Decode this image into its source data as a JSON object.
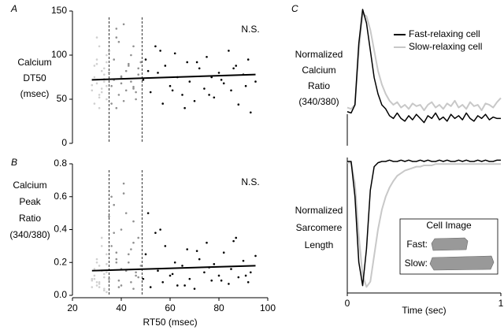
{
  "chart_data": [
    {
      "type": "scatter",
      "panel_label": "A",
      "annotation": "N.S.",
      "ylabel": [
        "Calcium",
        "DT50",
        "(msec)"
      ],
      "xlim": [
        20,
        100
      ],
      "ylim": [
        0,
        150
      ],
      "yticks": [
        0,
        50,
        100,
        150
      ],
      "vlines": [
        35,
        48.5
      ],
      "series": [
        {
          "color": "#d0d0d0",
          "x": [
            28,
            29,
            30,
            31,
            32,
            33,
            34,
            29,
            30,
            31,
            32,
            33,
            34,
            28,
            30,
            31,
            33,
            34,
            29,
            32,
            30,
            33,
            31,
            34,
            28
          ],
          "values": [
            60,
            75,
            90,
            55,
            82,
            70,
            100,
            45,
            68,
            110,
            62,
            85,
            50,
            72,
            95,
            40,
            78,
            65,
            88,
            58,
            120,
            73,
            52,
            92,
            66
          ]
        },
        {
          "color": "#909090",
          "x": [
            35,
            36,
            37,
            38,
            39,
            40,
            41,
            42,
            43,
            44,
            45,
            46,
            47,
            48,
            36,
            38,
            40,
            42,
            44,
            46,
            37,
            39,
            41,
            43,
            45,
            47,
            35,
            40,
            45,
            38
          ],
          "values": [
            80,
            65,
            95,
            120,
            55,
            75,
            135,
            60,
            88,
            70,
            110,
            50,
            78,
            92,
            45,
            130,
            68,
            82,
            100,
            58,
            72,
            115,
            48,
            90,
            64,
            85,
            105,
            76,
            62,
            40
          ]
        },
        {
          "color": "#000000",
          "x": [
            49,
            50,
            52,
            54,
            55,
            57,
            58,
            60,
            62,
            63,
            65,
            67,
            68,
            70,
            72,
            74,
            75,
            77,
            78,
            80,
            82,
            84,
            85,
            87,
            88,
            90,
            92,
            93,
            95,
            51,
            56,
            61,
            66,
            71,
            76,
            81,
            86,
            91
          ],
          "values": [
            72,
            95,
            58,
            110,
            80,
            45,
            88,
            65,
            102,
            75,
            55,
            92,
            70,
            48,
            85,
            62,
            98,
            75,
            52,
            80,
            68,
            105,
            60,
            88,
            44,
            78,
            95,
            35,
            70,
            82,
            105,
            60,
            40,
            92,
            55,
            72,
            85,
            65
          ]
        },
        {
          "color": "#000000",
          "mode": "line",
          "x": [
            28,
            95
          ],
          "values": [
            72,
            78
          ]
        }
      ]
    },
    {
      "type": "scatter",
      "panel_label": "B",
      "annotation": "N.S.",
      "ylabel": [
        "Calcium",
        "Peak",
        "Ratio",
        "(340/380)"
      ],
      "xlabel": "RT50 (msec)",
      "xlim": [
        20,
        100
      ],
      "xticks": [
        20,
        40,
        60,
        80,
        100
      ],
      "ylim": [
        0,
        0.8
      ],
      "yticks": [
        {
          "value": 0,
          "label": "0.0"
        },
        0.2,
        0.4,
        0.6,
        0.8
      ],
      "vlines": [
        35,
        48.5
      ],
      "series": [
        {
          "color": "#d0d0d0",
          "x": [
            28,
            29,
            30,
            31,
            32,
            33,
            34,
            29,
            30,
            31,
            32,
            33,
            34,
            28,
            30,
            31,
            33,
            34,
            29,
            32,
            30,
            33,
            31,
            34,
            28
          ],
          "values": [
            0.05,
            0.12,
            0.2,
            0.08,
            0.15,
            0.03,
            0.25,
            0.1,
            0.06,
            0.18,
            0.3,
            0.04,
            0.14,
            0.09,
            0.22,
            0.07,
            0.11,
            0.02,
            0.16,
            0.35,
            0.08,
            0.13,
            0.05,
            0.19,
            0.1
          ]
        },
        {
          "color": "#909090",
          "x": [
            35,
            36,
            37,
            38,
            39,
            40,
            41,
            42,
            43,
            44,
            45,
            46,
            47,
            48,
            36,
            38,
            40,
            42,
            44,
            46,
            37,
            39,
            41,
            43,
            45,
            47,
            35,
            40,
            45,
            38
          ],
          "values": [
            0.1,
            0.3,
            0.55,
            0.2,
            0.05,
            0.4,
            0.68,
            0.15,
            0.25,
            0.08,
            0.45,
            0.12,
            0.35,
            0.18,
            0.6,
            0.22,
            0.06,
            0.5,
            0.28,
            0.14,
            0.38,
            0.09,
            0.62,
            0.2,
            0.32,
            0.11,
            0.48,
            0.16,
            0.04,
            0.26
          ]
        },
        {
          "color": "#000000",
          "x": [
            49,
            50,
            52,
            54,
            55,
            57,
            58,
            60,
            62,
            63,
            65,
            67,
            68,
            70,
            72,
            74,
            75,
            77,
            78,
            80,
            82,
            84,
            85,
            87,
            88,
            90,
            92,
            93,
            95,
            51,
            56,
            61,
            66,
            71,
            76,
            81,
            86,
            91
          ],
          "values": [
            0.1,
            0.25,
            0.05,
            0.38,
            0.15,
            0.08,
            0.3,
            0.12,
            0.2,
            0.06,
            0.18,
            0.28,
            0.1,
            0.04,
            0.22,
            0.14,
            0.32,
            0.09,
            0.19,
            0.12,
            0.26,
            0.07,
            0.16,
            0.35,
            0.11,
            0.21,
            0.08,
            0.14,
            0.24,
            0.5,
            0.4,
            0.13,
            0.06,
            0.27,
            0.17,
            0.09,
            0.33,
            0.12
          ]
        },
        {
          "color": "#000000",
          "mode": "line",
          "x": [
            28,
            95
          ],
          "values": [
            0.15,
            0.18
          ]
        }
      ]
    },
    {
      "type": "line",
      "panel_label": "C",
      "ylabel": [
        "Normalized",
        "Calcium",
        "Ratio",
        "(340/380)"
      ],
      "xlim": [
        0,
        1
      ],
      "ylim": [
        0,
        1
      ],
      "x": [
        0,
        0.025,
        0.05,
        0.075,
        0.1,
        0.125,
        0.15,
        0.175,
        0.2,
        0.225,
        0.25,
        0.275,
        0.3,
        0.325,
        0.35,
        0.375,
        0.4,
        0.425,
        0.45,
        0.475,
        0.5,
        0.525,
        0.55,
        0.575,
        0.6,
        0.625,
        0.65,
        0.675,
        0.7,
        0.725,
        0.75,
        0.775,
        0.8,
        0.825,
        0.85,
        0.875,
        0.9,
        0.925,
        0.95,
        0.975,
        1
      ],
      "series": [
        {
          "name": "Slow-relaxing cell",
          "color": "#c8c8c8",
          "values": [
            0.28,
            0.27,
            0.3,
            0.7,
            0.97,
            0.95,
            0.85,
            0.7,
            0.55,
            0.45,
            0.38,
            0.33,
            0.3,
            0.32,
            0.28,
            0.3,
            0.27,
            0.31,
            0.29,
            0.3,
            0.26,
            0.3,
            0.32,
            0.28,
            0.3,
            0.27,
            0.31,
            0.29,
            0.33,
            0.28,
            0.3,
            0.27,
            0.32,
            0.29,
            0.3,
            0.26,
            0.31,
            0.3,
            0.28,
            0.32,
            0.35
          ]
        },
        {
          "name": "Fast-relaxing cell",
          "color": "#000000",
          "values": [
            0.25,
            0.24,
            0.3,
            0.75,
            1.0,
            0.9,
            0.7,
            0.5,
            0.38,
            0.3,
            0.27,
            0.22,
            0.2,
            0.24,
            0.2,
            0.18,
            0.22,
            0.19,
            0.23,
            0.2,
            0.17,
            0.22,
            0.2,
            0.24,
            0.19,
            0.21,
            0.18,
            0.23,
            0.2,
            0.22,
            0.19,
            0.24,
            0.2,
            0.18,
            0.22,
            0.2,
            0.23,
            0.19,
            0.21,
            0.2,
            0.2
          ]
        }
      ]
    },
    {
      "type": "line",
      "ylabel": [
        "Normalized",
        "Sarcomere",
        "Length"
      ],
      "xlabel": "Time (sec)",
      "xlim": [
        0,
        1
      ],
      "xticks": [
        0,
        1
      ],
      "ylim": [
        0,
        1
      ],
      "x": [
        0,
        0.025,
        0.05,
        0.075,
        0.1,
        0.125,
        0.15,
        0.175,
        0.2,
        0.225,
        0.25,
        0.275,
        0.3,
        0.325,
        0.35,
        0.375,
        0.4,
        0.425,
        0.45,
        0.475,
        0.5,
        0.525,
        0.55,
        0.575,
        0.6,
        0.625,
        0.65,
        0.675,
        0.7,
        0.725,
        0.75,
        0.775,
        0.8,
        0.825,
        0.85,
        0.875,
        0.9,
        0.925,
        0.95,
        0.975,
        1
      ],
      "series": [
        {
          "color": "#c8c8c8",
          "values": [
            0.96,
            0.96,
            0.8,
            0.4,
            0.1,
            0.01,
            0.05,
            0.25,
            0.45,
            0.6,
            0.7,
            0.77,
            0.82,
            0.86,
            0.88,
            0.9,
            0.91,
            0.92,
            0.93,
            0.93,
            0.94,
            0.94,
            0.94,
            0.95,
            0.95,
            0.95,
            0.95,
            0.95,
            0.95,
            0.95,
            0.95,
            0.95,
            0.95,
            0.95,
            0.95,
            0.95,
            0.95,
            0.95,
            0.95,
            0.95,
            0.95
          ]
        },
        {
          "color": "#000000",
          "values": [
            0.97,
            0.97,
            0.7,
            0.2,
            0.02,
            0.3,
            0.75,
            0.93,
            0.96,
            0.97,
            0.97,
            0.98,
            0.97,
            0.97,
            0.98,
            0.97,
            0.98,
            0.97,
            0.97,
            0.98,
            0.97,
            0.98,
            0.97,
            0.97,
            0.98,
            0.97,
            0.98,
            0.97,
            0.97,
            0.98,
            0.97,
            0.98,
            0.97,
            0.97,
            0.98,
            0.97,
            0.98,
            0.97,
            0.97,
            0.98,
            0.98
          ]
        }
      ],
      "inset": {
        "title": "Cell Image",
        "labels": [
          "Fast:",
          "Slow:"
        ]
      }
    }
  ]
}
